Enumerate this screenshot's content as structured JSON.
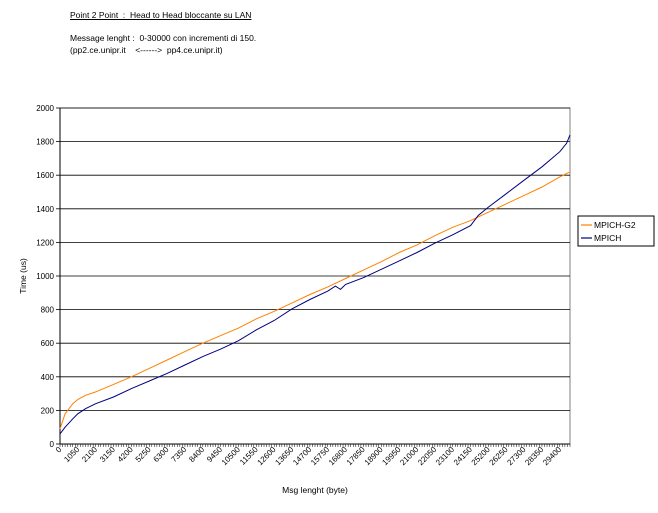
{
  "header": {
    "title": "Point 2 Point  :  Head to Head bloccante su LAN",
    "line1": "Message lenght :  0-30000 con incrementi di 150.",
    "line2": "(pp2.ce.unipr.it    <------>  pp4.ce.unipr.it)"
  },
  "chart_data": {
    "type": "line",
    "xlabel": "Msg lenght (byte)",
    "ylabel": "Time (us)",
    "xlim": [
      0,
      30000
    ],
    "ylim": [
      0,
      2000
    ],
    "yticks": [
      0,
      200,
      400,
      600,
      800,
      1000,
      1200,
      1400,
      1600,
      1800,
      2000
    ],
    "xticks": [
      0,
      1050,
      2100,
      3150,
      4200,
      5250,
      6300,
      7350,
      8400,
      9450,
      10500,
      11550,
      12600,
      13650,
      14700,
      15750,
      16800,
      17850,
      18900,
      19950,
      21000,
      22050,
      23100,
      24150,
      25200,
      26250,
      27300,
      28350,
      29400
    ],
    "grid": "horizontal",
    "legend": "right",
    "series": [
      {
        "name": "MPICH-G2",
        "color": "#ff8000",
        "x": [
          0,
          300,
          750,
          1050,
          1500,
          2100,
          3150,
          4200,
          5250,
          6300,
          7350,
          8400,
          9450,
          10500,
          11550,
          12600,
          13650,
          14700,
          15750,
          16800,
          17850,
          18900,
          19950,
          21000,
          22050,
          23100,
          24150,
          25200,
          26250,
          27300,
          28350,
          29400,
          30000
        ],
        "values": [
          90,
          180,
          240,
          265,
          290,
          310,
          355,
          400,
          450,
          500,
          550,
          600,
          645,
          690,
          745,
          790,
          840,
          890,
          935,
          985,
          1035,
          1085,
          1140,
          1185,
          1240,
          1290,
          1330,
          1380,
          1430,
          1480,
          1530,
          1590,
          1620
        ]
      },
      {
        "name": "MPICH",
        "color": "#000080",
        "x": [
          0,
          300,
          750,
          1050,
          1500,
          2100,
          3150,
          4200,
          5250,
          6300,
          7350,
          8400,
          9450,
          10500,
          11550,
          12600,
          13650,
          14700,
          15750,
          16200,
          16500,
          16800,
          17850,
          18900,
          19950,
          21000,
          22050,
          23100,
          24150,
          24600,
          25200,
          26250,
          27300,
          28350,
          29400,
          29800,
          30000
        ],
        "values": [
          60,
          100,
          150,
          180,
          210,
          240,
          280,
          330,
          375,
          420,
          470,
          520,
          565,
          615,
          680,
          735,
          805,
          860,
          910,
          940,
          920,
          950,
          990,
          1040,
          1090,
          1140,
          1195,
          1245,
          1300,
          1360,
          1410,
          1490,
          1570,
          1650,
          1740,
          1790,
          1840
        ]
      }
    ]
  }
}
